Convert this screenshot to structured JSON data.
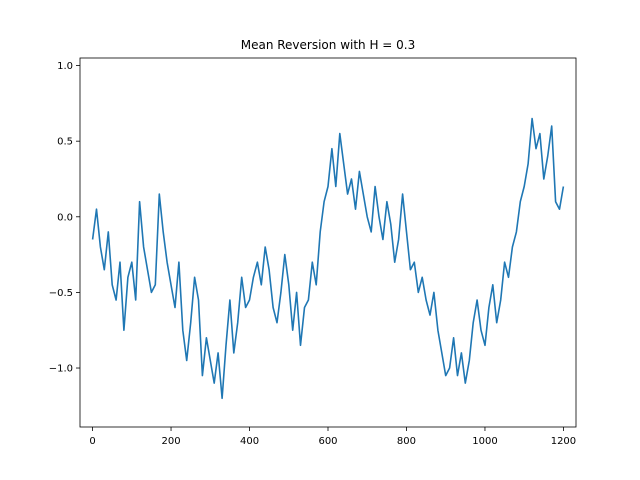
{
  "chart_data": {
    "type": "line",
    "title": "Mean Reversion with H = 0.3",
    "xlabel": "",
    "ylabel": "",
    "xlim": [
      -32,
      1232
    ],
    "ylim": [
      -1.39,
      1.05
    ],
    "xticks": [
      0,
      200,
      400,
      600,
      800,
      1000,
      1200
    ],
    "xtick_labels": [
      "0",
      "200",
      "400",
      "600",
      "800",
      "1000",
      "1200"
    ],
    "yticks": [
      1.0,
      0.5,
      0.0,
      -0.5,
      -1.0
    ],
    "ytick_labels": [
      "1.0",
      "0.5",
      "0.0",
      "−0.5",
      "−1.0"
    ],
    "grid": false,
    "legend": "none",
    "series": [
      {
        "color": "#1f77b4",
        "x": [
          0,
          10,
          20,
          30,
          40,
          50,
          60,
          70,
          80,
          90,
          100,
          110,
          120,
          130,
          140,
          150,
          160,
          170,
          180,
          190,
          200,
          210,
          220,
          230,
          240,
          250,
          260,
          270,
          280,
          290,
          300,
          310,
          320,
          330,
          340,
          350,
          360,
          370,
          380,
          390,
          400,
          410,
          420,
          430,
          440,
          450,
          460,
          470,
          480,
          490,
          500,
          510,
          520,
          530,
          540,
          550,
          560,
          570,
          580,
          590,
          600,
          610,
          620,
          630,
          640,
          650,
          660,
          670,
          680,
          690,
          700,
          710,
          720,
          730,
          740,
          750,
          760,
          770,
          780,
          790,
          800,
          810,
          820,
          830,
          840,
          850,
          860,
          870,
          880,
          890,
          900,
          910,
          920,
          930,
          940,
          950,
          960,
          970,
          980,
          990,
          1000,
          1010,
          1020,
          1030,
          1040,
          1050,
          1060,
          1070,
          1080,
          1090,
          1100,
          1110,
          1120,
          1130,
          1140,
          1150,
          1160,
          1170,
          1180,
          1190,
          1200
        ],
        "y": [
          -0.15,
          0.05,
          -0.2,
          -0.35,
          -0.1,
          -0.45,
          -0.55,
          -0.3,
          -0.75,
          -0.4,
          -0.3,
          -0.55,
          0.1,
          -0.2,
          -0.35,
          -0.5,
          -0.45,
          0.15,
          -0.1,
          -0.3,
          -0.45,
          -0.6,
          -0.3,
          -0.75,
          -0.95,
          -0.7,
          -0.4,
          -0.55,
          -1.05,
          -0.8,
          -0.95,
          -1.1,
          -0.9,
          -1.2,
          -0.85,
          -0.55,
          -0.9,
          -0.7,
          -0.4,
          -0.6,
          -0.55,
          -0.4,
          -0.3,
          -0.45,
          -0.2,
          -0.35,
          -0.6,
          -0.7,
          -0.5,
          -0.25,
          -0.45,
          -0.75,
          -0.5,
          -0.85,
          -0.6,
          -0.55,
          -0.3,
          -0.45,
          -0.1,
          0.1,
          0.2,
          0.45,
          0.2,
          0.55,
          0.35,
          0.15,
          0.25,
          0.05,
          0.3,
          0.15,
          0.0,
          -0.1,
          0.2,
          0.0,
          -0.15,
          0.1,
          -0.05,
          -0.3,
          -0.15,
          0.15,
          -0.1,
          -0.35,
          -0.3,
          -0.5,
          -0.4,
          -0.55,
          -0.65,
          -0.5,
          -0.75,
          -0.9,
          -1.05,
          -1.0,
          -0.8,
          -1.05,
          -0.9,
          -1.1,
          -0.95,
          -0.7,
          -0.55,
          -0.75,
          -0.85,
          -0.6,
          -0.45,
          -0.7,
          -0.55,
          -0.3,
          -0.4,
          -0.2,
          -0.1,
          0.1,
          0.2,
          0.35,
          0.65,
          0.45,
          0.55,
          0.25,
          0.4,
          0.6,
          0.1,
          0.05,
          0.2
        ]
      }
    ]
  }
}
